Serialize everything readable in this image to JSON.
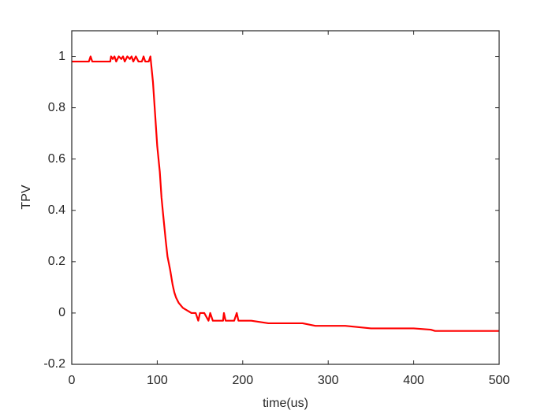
{
  "chart_data": {
    "type": "line",
    "xlabel": "time(us)",
    "ylabel": "TPV",
    "color": "#ff0000",
    "x": [
      0,
      20,
      22,
      24,
      45,
      46,
      48,
      50,
      52,
      55,
      58,
      60,
      62,
      65,
      68,
      70,
      72,
      75,
      78,
      82,
      84,
      86,
      90,
      92,
      95,
      98,
      100,
      103,
      105,
      107,
      110,
      112,
      115,
      118,
      120,
      122,
      125,
      130,
      135,
      140,
      145,
      148,
      150,
      155,
      160,
      162,
      165,
      170,
      177,
      178,
      180,
      190,
      193,
      195,
      200,
      210,
      230,
      250,
      270,
      285,
      300,
      320,
      350,
      380,
      400,
      420,
      425,
      500
    ],
    "values": [
      0.98,
      0.98,
      1.0,
      0.98,
      0.98,
      1.0,
      0.99,
      1.0,
      0.98,
      1.0,
      0.99,
      1.0,
      0.98,
      1.0,
      0.99,
      1.0,
      0.98,
      1.0,
      0.98,
      0.98,
      1.0,
      0.98,
      0.98,
      1.0,
      0.9,
      0.75,
      0.65,
      0.55,
      0.45,
      0.38,
      0.28,
      0.22,
      0.17,
      0.11,
      0.08,
      0.06,
      0.04,
      0.02,
      0.01,
      0.0,
      0.0,
      -0.03,
      0.0,
      0.0,
      -0.03,
      0.0,
      -0.03,
      -0.03,
      -0.03,
      0.0,
      -0.03,
      -0.03,
      0.0,
      -0.03,
      -0.03,
      -0.03,
      -0.04,
      -0.04,
      -0.04,
      -0.05,
      -0.05,
      -0.05,
      -0.06,
      -0.06,
      -0.06,
      -0.065,
      -0.07,
      -0.07
    ],
    "xlim": [
      0,
      500
    ],
    "xticks": [
      0,
      100,
      200,
      300,
      400,
      500
    ],
    "ylim": [
      -0.2,
      1.1
    ],
    "yticks": [
      -0.2,
      0,
      0.2,
      0.4,
      0.6,
      0.8,
      1
    ],
    "grid": false
  }
}
